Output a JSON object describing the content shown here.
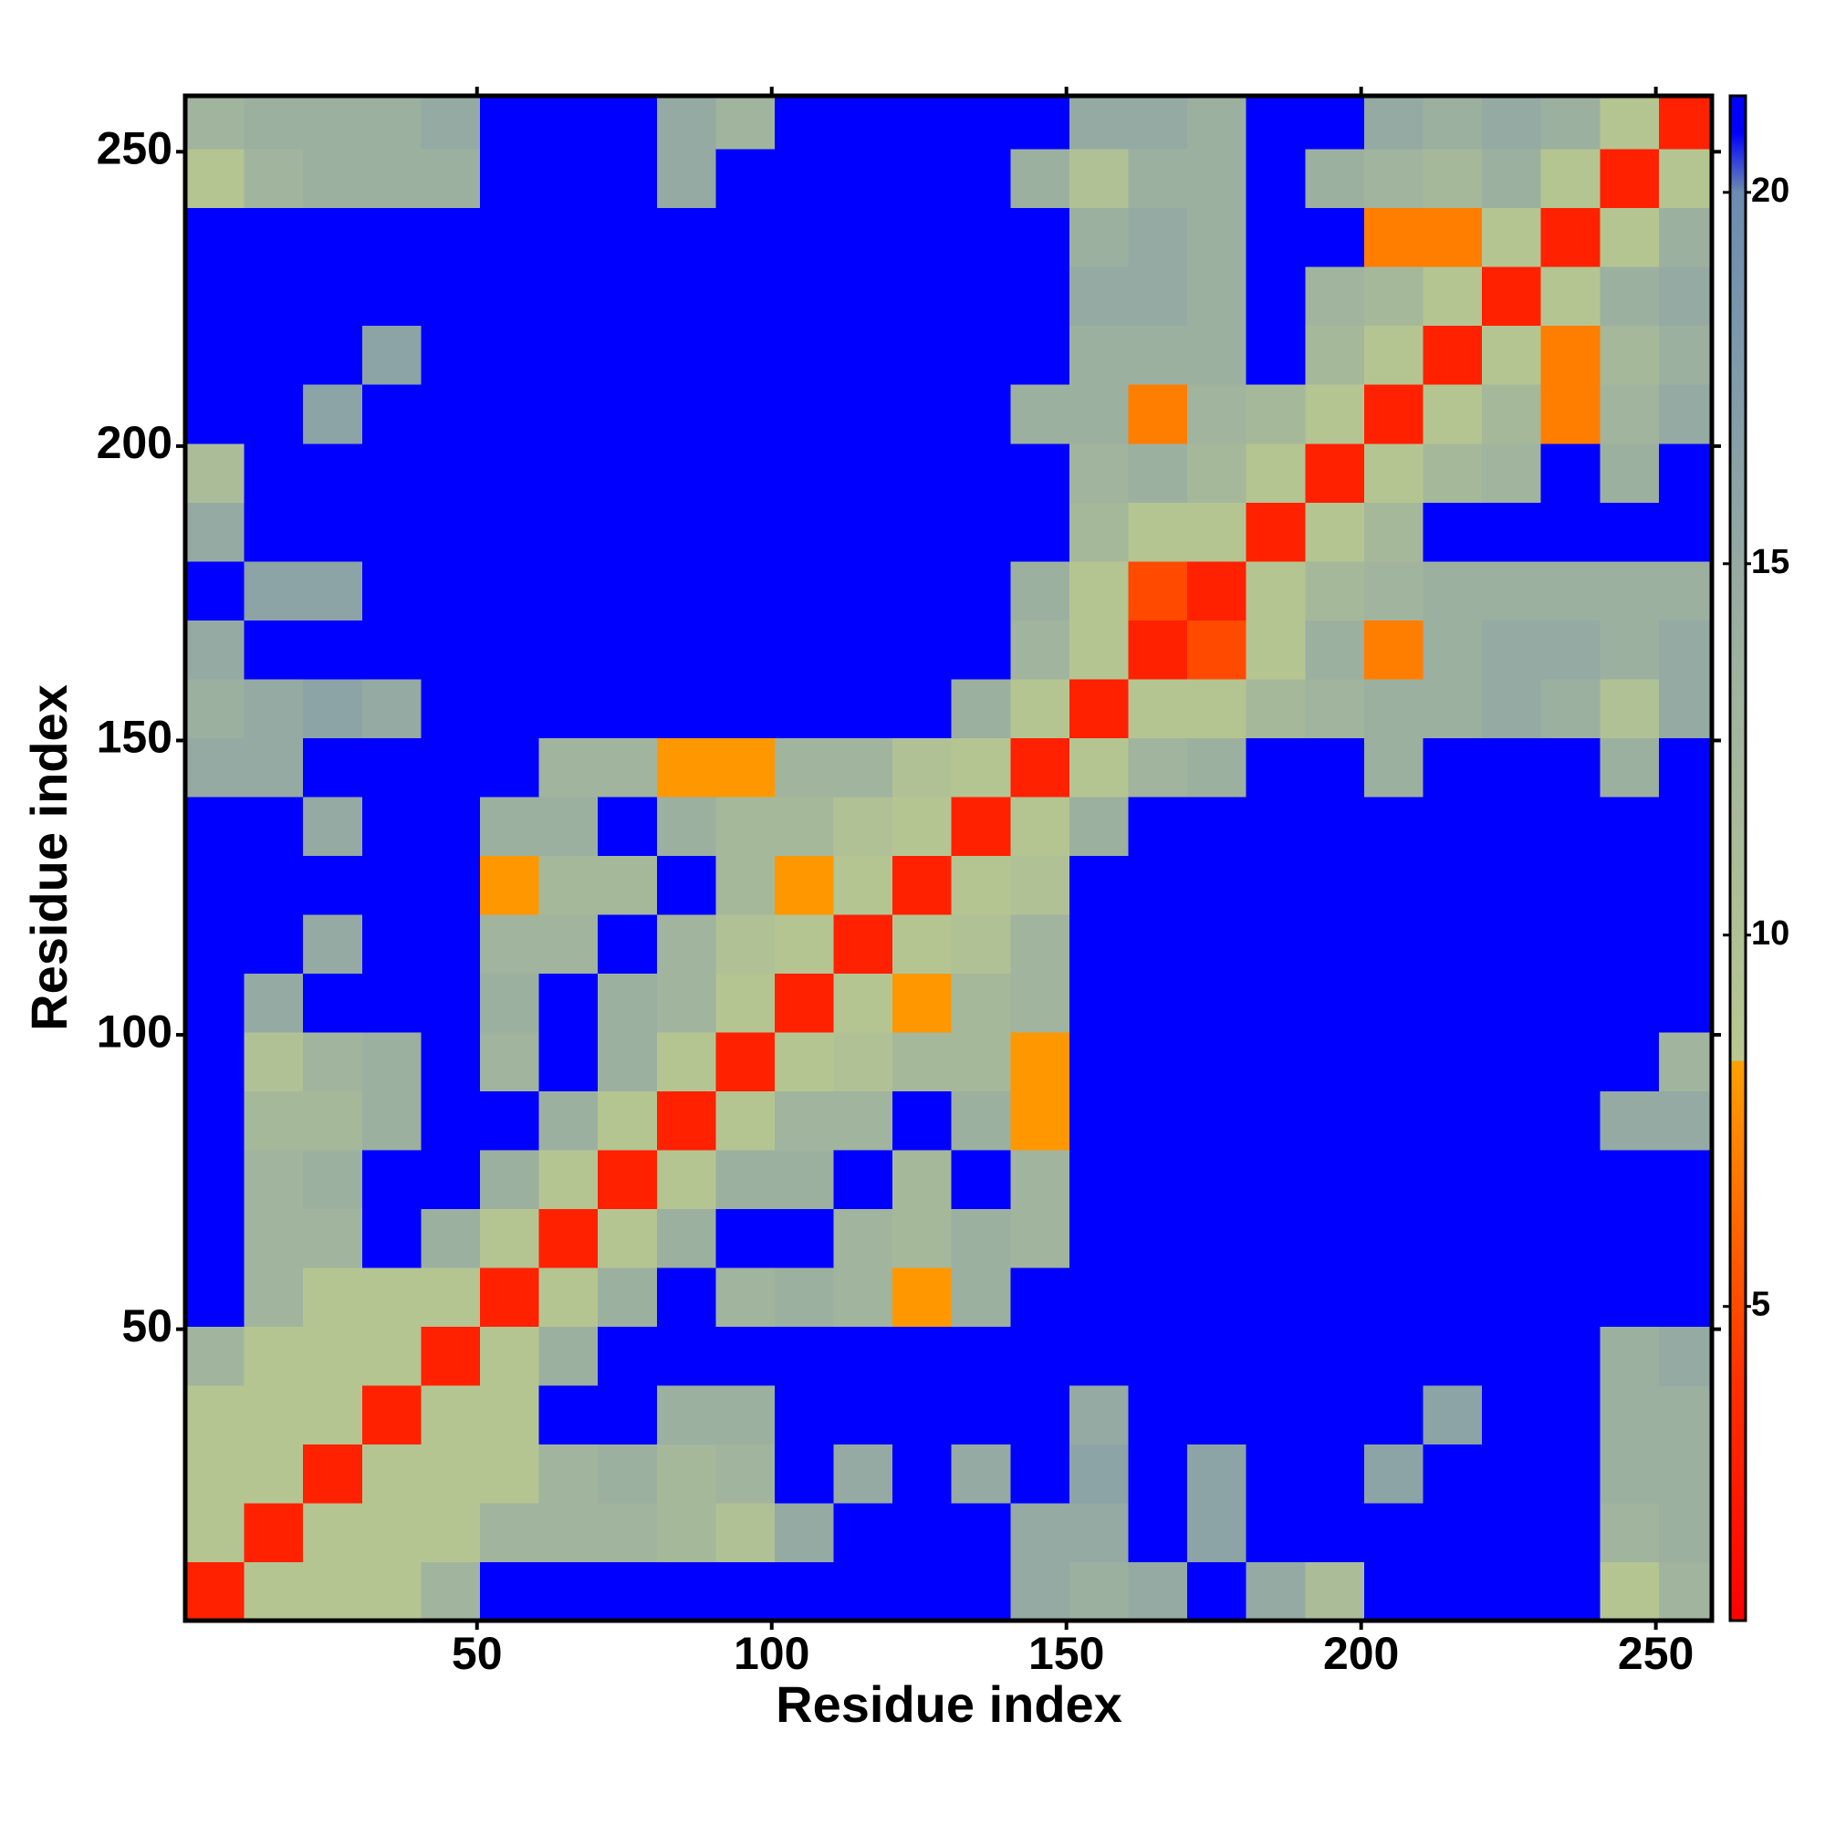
{
  "chart_data": {
    "type": "heatmap",
    "xlabel": "Residue index",
    "ylabel": "Residue index",
    "bins": [
      0.5,
      10.5,
      20.5,
      30.5,
      40.5,
      50.5,
      60.5,
      70.5,
      80.5,
      90.5,
      100.5,
      110.5,
      120.5,
      130.5,
      140.5,
      150.5,
      160.5,
      170.5,
      180.5,
      190.5,
      200.5,
      210.5,
      220.5,
      230.5,
      240.5,
      250.5,
      259.5
    ],
    "xlim": [
      0.5,
      259.5
    ],
    "ylim": [
      0.5,
      259.5
    ],
    "xticks": [
      50,
      100,
      150,
      200,
      250
    ],
    "yticks": [
      50,
      100,
      150,
      200,
      250
    ],
    "clim": [
      0.77,
      21.3
    ],
    "colorbar_ticks": [
      5,
      10,
      15,
      20
    ],
    "colorscale": [
      [
        0.77,
        "#ff0000"
      ],
      [
        4,
        "#ff3000"
      ],
      [
        8.3,
        "#ffa000"
      ],
      [
        8.31,
        "#b8c890"
      ],
      [
        14,
        "#9cb0a0"
      ],
      [
        20,
        "#6c8cb0"
      ],
      [
        20.8,
        "#0000ff"
      ],
      [
        21.3,
        "#0000ff"
      ]
    ],
    "z": [
      [
        3,
        9,
        9,
        9,
        13,
        22,
        22,
        22,
        22,
        22,
        22,
        22,
        22,
        22,
        15,
        14,
        15,
        22,
        15,
        11,
        22,
        22,
        22,
        22,
        9,
        13
      ],
      [
        9,
        3,
        9,
        9,
        9,
        13,
        13,
        13,
        12,
        10,
        15,
        22,
        22,
        22,
        15,
        15,
        22,
        16,
        22,
        22,
        22,
        22,
        22,
        22,
        13,
        14
      ],
      [
        9,
        9,
        3,
        9,
        9,
        9,
        13,
        14,
        12,
        13,
        22,
        15,
        22,
        15,
        22,
        16,
        22,
        16,
        22,
        22,
        16,
        22,
        22,
        22,
        14,
        14
      ],
      [
        9,
        9,
        9,
        3,
        9,
        9,
        22,
        22,
        14,
        14,
        22,
        22,
        22,
        22,
        22,
        15,
        22,
        22,
        22,
        22,
        22,
        16,
        22,
        22,
        14,
        14
      ],
      [
        13,
        9,
        9,
        9,
        3,
        9,
        14,
        22,
        22,
        22,
        22,
        22,
        22,
        22,
        22,
        22,
        22,
        22,
        22,
        22,
        22,
        22,
        22,
        22,
        14,
        15
      ],
      [
        22,
        13,
        9,
        9,
        9,
        3,
        9,
        14,
        22,
        13,
        14,
        13,
        8,
        14,
        22,
        22,
        22,
        22,
        22,
        22,
        22,
        22,
        22,
        22,
        22,
        22
      ],
      [
        22,
        13,
        13,
        22,
        14,
        9,
        3,
        9,
        14,
        22,
        22,
        13,
        12,
        14,
        13,
        22,
        22,
        22,
        22,
        22,
        22,
        22,
        22,
        22,
        22,
        22
      ],
      [
        22,
        13,
        14,
        22,
        22,
        14,
        9,
        3,
        9,
        14,
        14,
        22,
        12,
        22,
        13,
        22,
        22,
        22,
        22,
        22,
        22,
        22,
        22,
        22,
        22,
        22
      ],
      [
        22,
        12,
        12,
        14,
        22,
        22,
        14,
        9,
        3,
        9,
        13,
        13,
        22,
        14,
        8,
        22,
        22,
        22,
        22,
        22,
        22,
        22,
        22,
        22,
        15,
        15
      ],
      [
        22,
        10,
        13,
        14,
        22,
        13,
        22,
        14,
        9,
        3,
        9,
        10,
        12,
        12,
        8,
        22,
        22,
        22,
        22,
        22,
        22,
        22,
        22,
        22,
        22,
        13
      ],
      [
        22,
        15,
        22,
        22,
        22,
        14,
        22,
        14,
        13,
        9,
        3,
        9,
        8,
        12,
        13,
        22,
        22,
        22,
        22,
        22,
        22,
        22,
        22,
        22,
        22,
        22
      ],
      [
        22,
        22,
        15,
        22,
        22,
        13,
        13,
        22,
        13,
        10,
        9,
        3,
        9,
        10,
        13,
        22,
        22,
        22,
        22,
        22,
        22,
        22,
        22,
        22,
        22,
        22
      ],
      [
        22,
        22,
        22,
        22,
        22,
        8,
        12,
        12,
        22,
        12,
        8,
        9,
        3,
        9,
        10,
        22,
        22,
        22,
        22,
        22,
        22,
        22,
        22,
        22,
        22,
        22
      ],
      [
        22,
        22,
        15,
        22,
        22,
        14,
        14,
        22,
        14,
        12,
        12,
        10,
        9,
        3,
        9,
        14,
        22,
        22,
        22,
        22,
        22,
        22,
        22,
        22,
        22,
        22
      ],
      [
        15,
        15,
        22,
        22,
        22,
        22,
        13,
        13,
        8,
        8,
        13,
        13,
        10,
        9,
        3,
        9,
        13,
        14,
        22,
        22,
        14,
        22,
        22,
        22,
        14,
        22
      ],
      [
        14,
        15,
        16,
        15,
        22,
        22,
        22,
        22,
        22,
        22,
        22,
        22,
        22,
        14,
        9,
        3,
        9,
        9,
        12,
        13,
        14,
        14,
        15,
        14,
        10,
        15
      ],
      [
        15,
        22,
        22,
        22,
        22,
        22,
        22,
        22,
        22,
        22,
        22,
        22,
        22,
        22,
        13,
        9,
        3,
        5,
        9,
        14,
        7,
        14,
        15,
        15,
        14,
        15
      ],
      [
        22,
        16,
        16,
        22,
        22,
        22,
        22,
        22,
        22,
        22,
        22,
        22,
        22,
        22,
        14,
        9,
        5,
        3,
        9,
        12,
        13,
        14,
        14,
        14,
        14,
        14
      ],
      [
        15,
        22,
        22,
        22,
        22,
        22,
        22,
        22,
        22,
        22,
        22,
        22,
        22,
        22,
        22,
        12,
        9,
        9,
        3,
        9,
        12,
        22,
        22,
        22,
        22,
        22
      ],
      [
        11,
        22,
        22,
        22,
        22,
        22,
        22,
        22,
        22,
        22,
        22,
        22,
        22,
        22,
        22,
        13,
        14,
        12,
        9,
        3,
        9,
        12,
        13,
        22,
        14,
        22
      ],
      [
        22,
        22,
        16,
        22,
        22,
        22,
        22,
        22,
        22,
        22,
        22,
        22,
        22,
        22,
        14,
        14,
        7,
        13,
        12,
        9,
        3,
        9,
        12,
        7,
        13,
        15
      ],
      [
        22,
        22,
        22,
        16,
        22,
        22,
        22,
        22,
        22,
        22,
        22,
        22,
        22,
        22,
        22,
        14,
        14,
        14,
        22,
        12,
        9,
        3,
        9,
        7,
        12,
        14
      ],
      [
        22,
        22,
        22,
        22,
        22,
        22,
        22,
        22,
        22,
        22,
        22,
        22,
        22,
        22,
        22,
        15,
        15,
        14,
        22,
        13,
        12,
        9,
        3,
        9,
        14,
        15
      ],
      [
        22,
        22,
        22,
        22,
        22,
        22,
        22,
        22,
        22,
        22,
        22,
        22,
        22,
        22,
        22,
        14,
        15,
        14,
        22,
        22,
        7,
        7,
        9,
        3,
        9,
        14
      ],
      [
        9,
        13,
        14,
        14,
        14,
        22,
        22,
        22,
        15,
        22,
        22,
        22,
        22,
        22,
        14,
        10,
        14,
        14,
        22,
        14,
        13,
        12,
        14,
        9,
        3,
        9
      ],
      [
        13,
        14,
        14,
        14,
        15,
        22,
        22,
        22,
        15,
        13,
        22,
        22,
        22,
        22,
        22,
        15,
        15,
        14,
        22,
        22,
        15,
        14,
        15,
        14,
        9,
        3
      ]
    ]
  }
}
